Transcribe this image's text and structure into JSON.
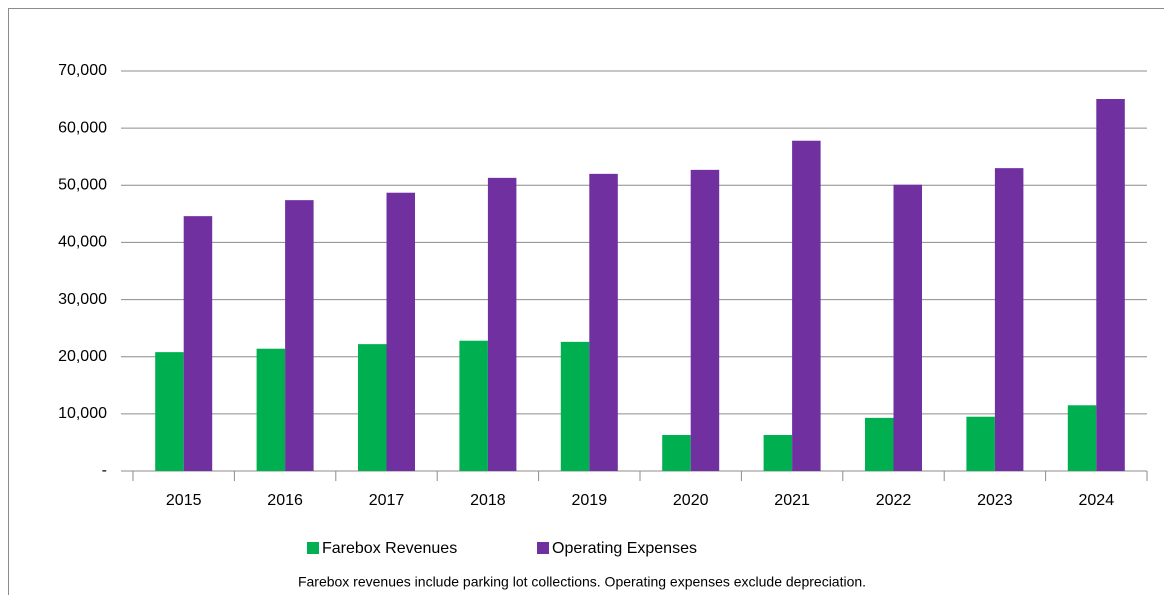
{
  "chart_data": {
    "type": "bar",
    "categories": [
      "2015",
      "2016",
      "2017",
      "2018",
      "2019",
      "2020",
      "2021",
      "2022",
      "2023",
      "2024"
    ],
    "series": [
      {
        "name": "Farebox Revenues",
        "color": "#00b050",
        "values": [
          20800,
          21400,
          22200,
          22800,
          22600,
          6300,
          6300,
          9300,
          9500,
          11500
        ]
      },
      {
        "name": "Operating Expenses",
        "color": "#7030a0",
        "values": [
          44600,
          47400,
          48700,
          51300,
          52000,
          52700,
          57800,
          50100,
          53000,
          65100
        ]
      }
    ],
    "ylim": [
      0,
      70000
    ],
    "yticks": [
      {
        "value": 0,
        "label": "-"
      },
      {
        "value": 10000,
        "label": "10,000"
      },
      {
        "value": 20000,
        "label": "20,000"
      },
      {
        "value": 30000,
        "label": "30,000"
      },
      {
        "value": 40000,
        "label": "40,000"
      },
      {
        "value": 50000,
        "label": "50,000"
      },
      {
        "value": 60000,
        "label": "60,000"
      },
      {
        "value": 70000,
        "label": "70,000"
      }
    ],
    "grid": true,
    "legend": "bottom",
    "annotation": "Farebox revenues include parking lot collections.  Operating expenses  exclude depreciation."
  }
}
